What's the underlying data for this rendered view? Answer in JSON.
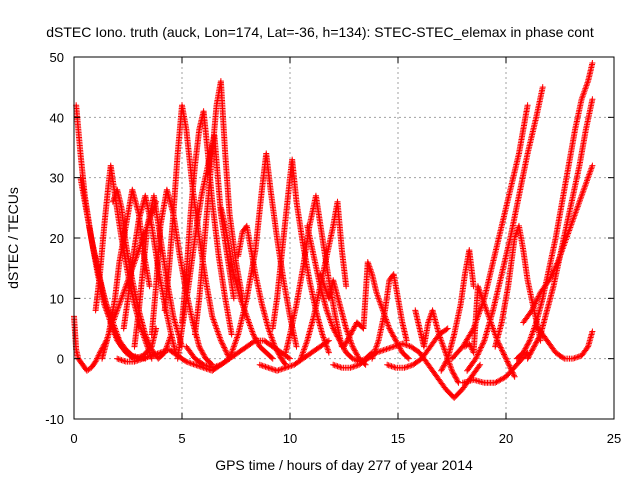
{
  "chart_data": {
    "type": "scatter",
    "title": "dSTEC Iono. truth (auck, Lon=174, Lat=-36, h=134): STEC-STEC_elemax in phase cont",
    "xlabel": "GPS time / hours of day 277 of year 2014",
    "ylabel": "dSTEC  / TECUs",
    "xlim": [
      0,
      25
    ],
    "ylim": [
      -10,
      50
    ],
    "xticks": [
      "0",
      "5",
      "10",
      "15",
      "20",
      "25"
    ],
    "yticks": [
      "-10",
      "0",
      "10",
      "20",
      "30",
      "40",
      "50"
    ],
    "grid": true,
    "marker": "+",
    "color": "#ff0000",
    "series": [
      {
        "x": [
          0.0,
          0.1,
          0.2,
          0.4,
          0.6,
          0.8,
          1.0,
          1.2,
          1.5,
          1.8,
          2.2,
          2.6,
          3.0,
          3.4,
          3.8
        ],
        "y": [
          7,
          1.5,
          0,
          -1,
          -2,
          -1.5,
          -0.5,
          1,
          3,
          6,
          10,
          14,
          18,
          22,
          26
        ]
      },
      {
        "x": [
          0.1,
          0.3,
          0.5,
          0.8,
          1.1,
          1.4,
          1.8,
          2.2,
          2.6,
          3.0
        ],
        "y": [
          42,
          34,
          27,
          20,
          14,
          9,
          5,
          2,
          0.5,
          0
        ]
      },
      {
        "x": [
          0.3,
          0.5,
          0.8,
          1.1,
          1.4,
          1.7,
          2.0,
          2.4,
          2.8,
          3.2,
          3.6,
          3.8
        ],
        "y": [
          30,
          26,
          20,
          15,
          10,
          6,
          3,
          1,
          0,
          0.5,
          2,
          5
        ]
      },
      {
        "x": [
          0.7,
          0.9,
          1.2,
          1.5,
          1.8,
          2.1,
          2.4,
          2.7,
          3.0,
          3.3
        ],
        "y": [
          22,
          18,
          13,
          9,
          6,
          3,
          1.5,
          0.5,
          0.2,
          0
        ]
      },
      {
        "x": [
          1.0,
          1.2,
          1.4,
          1.6,
          1.7,
          1.9,
          2.2,
          2.5,
          2.8,
          3.1,
          3.4,
          3.6
        ],
        "y": [
          8,
          14,
          22,
          29,
          32,
          27,
          20,
          14,
          9,
          5,
          2,
          0
        ]
      },
      {
        "x": [
          1.3,
          1.6,
          1.9,
          2.1,
          2.4,
          2.7,
          3.0,
          3.2,
          3.5
        ],
        "y": [
          0,
          4,
          10,
          16,
          22,
          28,
          24,
          18,
          12
        ]
      },
      {
        "x": [
          1.8,
          2.0,
          2.2,
          2.4,
          2.7,
          3.0,
          3.3,
          3.6,
          3.9,
          4.2,
          4.5
        ],
        "y": [
          26,
          28,
          25,
          19,
          13,
          8,
          4,
          1.5,
          0,
          1,
          4
        ]
      },
      {
        "x": [
          2.3,
          2.5,
          2.7,
          3.0,
          3.3,
          3.6,
          3.9,
          4.2,
          4.5,
          4.7
        ],
        "y": [
          5,
          10,
          16,
          23,
          27,
          22,
          15,
          9,
          4,
          1
        ]
      },
      {
        "x": [
          2.8,
          3.0,
          3.2,
          3.4,
          3.7,
          4.0,
          4.3,
          4.6,
          5.0
        ],
        "y": [
          2,
          8,
          15,
          22,
          27,
          20,
          13,
          7,
          2
        ]
      },
      {
        "x": [
          2.0,
          2.4,
          2.8,
          3.2,
          3.6,
          4.0,
          4.4,
          4.8,
          5.2,
          5.6,
          6.0,
          6.4,
          6.8,
          7.2
        ],
        "y": [
          0,
          -0.5,
          -0.5,
          0,
          0.5,
          1,
          1.5,
          0.5,
          -0.5,
          -1,
          -1.5,
          -2,
          -1,
          0
        ]
      },
      {
        "x": [
          3.6,
          3.8,
          4.0,
          4.3,
          4.6,
          4.9,
          5.2,
          5.5,
          5.8,
          6.1,
          6.4
        ],
        "y": [
          4,
          12,
          22,
          28,
          24,
          17,
          11,
          6,
          2,
          0,
          -1
        ]
      },
      {
        "x": [
          4.2,
          4.4,
          4.6,
          4.8,
          5.0,
          5.2,
          5.5,
          5.8,
          6.1,
          6.4,
          6.8,
          7.2
        ],
        "y": [
          8,
          15,
          24,
          34,
          42,
          38,
          28,
          20,
          13,
          7,
          3,
          0
        ]
      },
      {
        "x": [
          5.0,
          5.2,
          5.4,
          5.6,
          5.8,
          6.0,
          6.2,
          6.4,
          6.7,
          7.0,
          7.3
        ],
        "y": [
          6,
          14,
          24,
          32,
          38,
          41,
          34,
          26,
          17,
          10,
          4
        ]
      },
      {
        "x": [
          4.8,
          5.0,
          5.3,
          5.6,
          5.9,
          6.2,
          6.5,
          6.8,
          7.1,
          7.4
        ],
        "y": [
          0,
          5,
          12,
          20,
          27,
          32,
          37,
          24,
          17,
          10
        ]
      },
      {
        "x": [
          5.6,
          5.8,
          6.0,
          6.2,
          6.4,
          6.6,
          6.8,
          7.0,
          7.2,
          7.5,
          7.8
        ],
        "y": [
          4,
          10,
          18,
          26,
          34,
          42,
          46,
          34,
          24,
          16,
          10
        ]
      },
      {
        "x": [
          5.2,
          5.6,
          6.0,
          6.4,
          6.8,
          7.2,
          7.6,
          8.0,
          8.4,
          8.8,
          9.2,
          9.6,
          10.0
        ],
        "y": [
          2,
          0,
          -1,
          -1.5,
          -1,
          0,
          1,
          2,
          3,
          3,
          2,
          1,
          0
        ]
      },
      {
        "x": [
          6.8,
          7.0,
          7.2,
          7.4,
          7.7,
          8.0,
          8.3,
          8.6,
          8.9,
          9.2
        ],
        "y": [
          25,
          22,
          18,
          14,
          10,
          7,
          4,
          2,
          1,
          0
        ]
      },
      {
        "x": [
          7.6,
          7.8,
          8.0,
          8.2,
          8.4,
          8.7,
          9.0,
          9.3,
          9.6,
          9.8
        ],
        "y": [
          17,
          21,
          22,
          18,
          14,
          9,
          5,
          2,
          0,
          -1
        ]
      },
      {
        "x": [
          7.2,
          7.6,
          8.0,
          8.4,
          8.7,
          8.9,
          9.1,
          9.4,
          9.7,
          10.0,
          10.3
        ],
        "y": [
          0,
          4,
          10,
          18,
          28,
          34,
          28,
          20,
          13,
          7,
          2
        ]
      },
      {
        "x": [
          8.6,
          9.0,
          9.4,
          9.8,
          10.2,
          10.6,
          11.0,
          11.4,
          11.8
        ],
        "y": [
          -1,
          -1.5,
          -2,
          -1.5,
          -1,
          0,
          1,
          2,
          3
        ]
      },
      {
        "x": [
          9.2,
          9.4,
          9.7,
          10.0,
          10.1,
          10.3,
          10.6,
          10.9,
          11.2,
          11.5,
          11.8
        ],
        "y": [
          5,
          10,
          20,
          30,
          33,
          26,
          19,
          13,
          8,
          4,
          1
        ]
      },
      {
        "x": [
          9.8,
          10.0,
          10.3,
          10.6,
          10.9,
          11.2,
          11.5,
          11.8,
          12.1,
          12.4
        ],
        "y": [
          1,
          4,
          9,
          15,
          22,
          27,
          20,
          13,
          7,
          2
        ]
      },
      {
        "x": [
          10.5,
          10.8,
          11.1,
          11.4,
          11.7,
          12.0,
          12.2,
          12.4,
          12.6
        ],
        "y": [
          0,
          3,
          7,
          12,
          17,
          22,
          26,
          18,
          12
        ]
      },
      {
        "x": [
          10.8,
          11.1,
          11.4,
          11.7,
          12.0,
          12.3,
          12.6,
          12.9,
          13.2,
          13.5,
          13.8
        ],
        "y": [
          22,
          17,
          12,
          8,
          5,
          3,
          1,
          0,
          -0.5,
          0,
          1
        ]
      },
      {
        "x": [
          11.4,
          11.6,
          11.8,
          12.0,
          12.3,
          12.6,
          12.9,
          13.2,
          13.5
        ],
        "y": [
          14,
          12,
          10,
          13,
          9,
          5,
          2,
          0,
          -1
        ]
      },
      {
        "x": [
          12.0,
          12.4,
          12.8,
          13.2,
          13.6,
          14.0,
          14.4,
          14.8,
          15.2,
          15.6,
          16.0
        ],
        "y": [
          -1,
          -1.5,
          -1.5,
          -1,
          0,
          1,
          1.5,
          2,
          2.5,
          2,
          1
        ]
      },
      {
        "x": [
          12.5,
          12.8,
          13.1,
          13.4,
          13.6,
          13.8,
          14.0,
          14.3,
          14.6,
          14.9,
          15.2,
          15.5
        ],
        "y": [
          2,
          4,
          6,
          5,
          16,
          14,
          11,
          8,
          5,
          3,
          1,
          0
        ]
      },
      {
        "x": [
          13.8,
          14.1,
          14.4,
          14.6,
          14.8,
          15.0,
          15.2,
          15.4
        ],
        "y": [
          0,
          3,
          8,
          13,
          14,
          10,
          6,
          3
        ]
      },
      {
        "x": [
          14.5,
          14.9,
          15.3,
          15.7,
          16.1,
          16.5,
          16.9,
          17.3
        ],
        "y": [
          -1,
          -1.5,
          -1.5,
          -1,
          0,
          2,
          4,
          5
        ]
      },
      {
        "x": [
          15.8,
          16.0,
          16.2,
          16.4,
          16.6,
          16.9,
          17.2,
          17.5,
          17.8
        ],
        "y": [
          8,
          5,
          2,
          6,
          8,
          4,
          1,
          -2,
          -4
        ]
      },
      {
        "x": [
          16.0,
          16.4,
          16.8,
          17.2,
          17.6,
          18.0,
          18.4,
          18.8
        ],
        "y": [
          1,
          -1,
          -3,
          -5,
          -6.5,
          -5,
          -3,
          -1
        ]
      },
      {
        "x": [
          17.0,
          17.3,
          17.6,
          17.9,
          18.1,
          18.3,
          18.5
        ],
        "y": [
          -2,
          0,
          4,
          9,
          14,
          18,
          12
        ]
      },
      {
        "x": [
          18.1,
          18.3,
          18.5,
          18.7,
          19.0,
          19.3,
          19.6,
          20.0,
          20.4
        ],
        "y": [
          2,
          2.5,
          1,
          12,
          9,
          6,
          3,
          0,
          -3
        ]
      },
      {
        "x": [
          18.0,
          18.5,
          19.0,
          19.5,
          20.0,
          20.5,
          21.0
        ],
        "y": [
          -4,
          -3.5,
          -4,
          -4,
          -3,
          -1,
          1
        ]
      },
      {
        "x": [
          17.5,
          18.0,
          18.5,
          19.0,
          19.4,
          19.8,
          20.2,
          20.6,
          21.0
        ],
        "y": [
          0,
          2,
          5,
          10,
          16,
          22,
          28,
          34,
          42
        ]
      },
      {
        "x": [
          18.2,
          18.6,
          19.0,
          19.4,
          19.8,
          20.2,
          20.6,
          21.0,
          21.4,
          21.7
        ],
        "y": [
          -2,
          0,
          3,
          8,
          14,
          20,
          27,
          34,
          40,
          45
        ]
      },
      {
        "x": [
          19.5,
          19.8,
          20.1,
          20.4,
          20.6,
          20.8,
          21.0,
          21.3,
          21.6
        ],
        "y": [
          2,
          6,
          12,
          20,
          22,
          18,
          13,
          8,
          3
        ]
      },
      {
        "x": [
          20.5,
          20.8,
          21.1,
          21.4,
          21.7,
          22.0,
          22.3,
          22.6,
          22.9,
          23.2,
          23.5,
          23.8,
          24.0
        ],
        "y": [
          0,
          1,
          3,
          6,
          10,
          15,
          20,
          26,
          32,
          38,
          43,
          46,
          49
        ]
      },
      {
        "x": [
          21.0,
          21.3,
          21.6,
          21.9,
          22.2,
          22.5,
          22.8,
          23.1,
          23.4,
          23.7,
          24.0
        ],
        "y": [
          0,
          2,
          4,
          8,
          12,
          17,
          22,
          27,
          32,
          38,
          43
        ]
      },
      {
        "x": [
          20.8,
          21.2,
          21.6,
          22.0,
          22.4,
          22.8,
          23.2,
          23.6,
          24.0
        ],
        "y": [
          6,
          8,
          11,
          13,
          16,
          20,
          24,
          28,
          32
        ]
      },
      {
        "x": [
          21.5,
          21.9,
          22.3,
          22.7,
          23.1,
          23.5,
          23.8,
          24.0
        ],
        "y": [
          5,
          3,
          1,
          0,
          0,
          0.5,
          2,
          4.5
        ]
      }
    ]
  }
}
